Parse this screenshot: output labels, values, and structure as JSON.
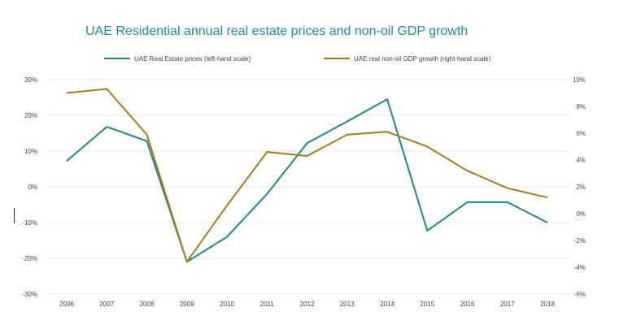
{
  "chart_data": {
    "type": "line",
    "title": "UAE Residential annual real estate prices and non-oil GDP growth",
    "categories": [
      "2006",
      "2007",
      "2008",
      "2009",
      "2010",
      "2011",
      "2012",
      "2013",
      "2014",
      "2015",
      "2016",
      "2017",
      "2018"
    ],
    "y_left": {
      "ylim": [
        -30,
        30
      ],
      "ticks": [
        "30%",
        "20%",
        "10%",
        "0%",
        "-10%",
        "-20%",
        "-30%"
      ],
      "tick_values": [
        30,
        20,
        10,
        0,
        -10,
        -20,
        -30
      ]
    },
    "y_right": {
      "ylim": [
        -6,
        10
      ],
      "ticks": [
        "10%",
        "8%",
        "6%",
        "4%",
        "2%",
        "0%",
        "-2%",
        "-4%",
        "-6%"
      ],
      "tick_values": [
        10,
        8,
        6,
        4,
        2,
        0,
        -2,
        -4,
        -6
      ]
    },
    "grid": "horizontal",
    "legend_position": "top",
    "series": [
      {
        "name": "UAE Real Estate prices (left-hand scale)",
        "axis": "left",
        "color": "#16898f",
        "values": [
          7.2,
          16.8,
          12.8,
          -21.0,
          -14.0,
          -2.0,
          12.2,
          18.3,
          24.5,
          -12.3,
          -4.3,
          -4.3,
          -10.0
        ]
      },
      {
        "name": "UAE real non-oil GDP growth (right-hand scale)",
        "axis": "right",
        "color": "#a87c12",
        "values": [
          9.0,
          9.3,
          5.9,
          -3.6,
          0.6,
          4.6,
          4.3,
          5.9,
          6.1,
          5.0,
          3.2,
          1.9,
          1.2
        ]
      }
    ]
  }
}
